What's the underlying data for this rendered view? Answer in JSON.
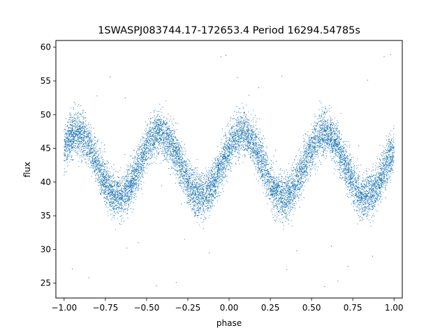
{
  "chart_data": {
    "type": "scatter",
    "title": "1SWASPJ083744.17-172653.4 Period 16294.54785s",
    "xlabel": "phase",
    "ylabel": "flux",
    "xlim": [
      -1.05,
      1.05
    ],
    "ylim": [
      22.8,
      61.0
    ],
    "xticks": [
      -1.0,
      -0.75,
      -0.5,
      -0.25,
      0.0,
      0.25,
      0.5,
      0.75,
      1.0
    ],
    "xtick_labels": [
      "−1.00",
      "−0.75",
      "−0.50",
      "−0.25",
      "0.00",
      "0.25",
      "0.50",
      "0.75",
      "1.00"
    ],
    "yticks": [
      25,
      30,
      35,
      40,
      45,
      50,
      55,
      60
    ],
    "ytick_labels": [
      "25",
      "30",
      "35",
      "40",
      "45",
      "50",
      "55",
      "60"
    ],
    "grid": false,
    "marker_color": "#1f77b4",
    "series": [
      {
        "model": "sinusoid",
        "x_range": [
          -1.0,
          1.0
        ],
        "mean_flux": 42.5,
        "amplitude": 4.7,
        "cycles_per_phase_unit": 2,
        "peak_phase": 0.08,
        "scatter_sigma": 1.6,
        "point_count": 14000,
        "outliers": [
          [
            -0.72,
            55.6
          ],
          [
            -0.95,
            27.1
          ],
          [
            -0.62,
            30.2
          ],
          [
            -0.44,
            24.6
          ],
          [
            -0.32,
            25.1
          ],
          [
            -0.85,
            25.8
          ],
          [
            -0.8,
            52.8
          ],
          [
            -0.12,
            29.5
          ],
          [
            -0.05,
            58.6
          ],
          [
            -0.02,
            58.8
          ],
          [
            0.18,
            54.0
          ],
          [
            0.32,
            55.7
          ],
          [
            0.35,
            27.0
          ],
          [
            0.58,
            24.5
          ],
          [
            0.66,
            25.3
          ],
          [
            0.62,
            30.5
          ],
          [
            0.72,
            27.5
          ],
          [
            0.84,
            55.1
          ],
          [
            0.94,
            58.6
          ],
          [
            0.98,
            58.9
          ],
          [
            0.41,
            29.8
          ],
          [
            -0.55,
            31.0
          ],
          [
            0.12,
            52.9
          ],
          [
            -0.27,
            31.5
          ],
          [
            0.87,
            29.0
          ],
          [
            -0.63,
            52.5
          ],
          [
            0.55,
            52.0
          ],
          [
            0.05,
            55.5
          ]
        ]
      }
    ]
  }
}
